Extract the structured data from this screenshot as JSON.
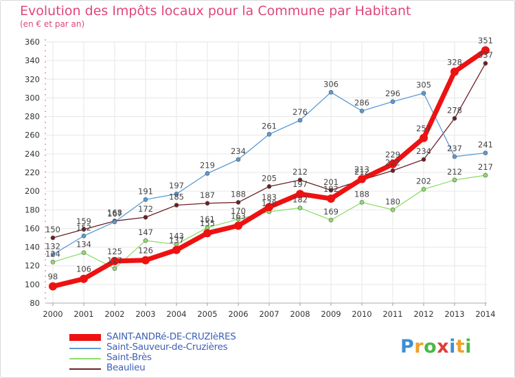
{
  "header": {
    "title": "Evolution des Impôts locaux pour la Commune par Habitant",
    "subtitle": "(en € et par an)"
  },
  "colors": {
    "title": "#e0457b",
    "axis_text": "#333333",
    "grid": "#e6e6e6",
    "legend_text": "#3c5fb4"
  },
  "chart_data": {
    "type": "line",
    "x": [
      "2000",
      "2001",
      "2002",
      "2003",
      "2004",
      "2005",
      "2006",
      "2007",
      "2008",
      "2009",
      "2010",
      "2011",
      "2012",
      "2013",
      "2014"
    ],
    "ylim": [
      80,
      360
    ],
    "yticks": [
      "80",
      "100",
      "120",
      "140",
      "160",
      "180",
      "200",
      "220",
      "240",
      "260",
      "280",
      "300",
      "320",
      "340",
      "360"
    ],
    "grid": true,
    "legend_position": "bottom-left",
    "series": [
      {
        "name": "Beaulieu",
        "color": "#6b1f24",
        "values": [
          150,
          159,
          168,
          172,
          185,
          187,
          188,
          205,
          212,
          201,
          212,
          222,
          234,
          278,
          337
        ]
      },
      {
        "name": "Saint-Brès",
        "color": "#8fdd6a",
        "values": [
          124,
          134,
          117,
          147,
          143,
          161,
          170,
          178,
          182,
          169,
          188,
          180,
          202,
          212,
          217
        ]
      },
      {
        "name": "Saint-Sauveur-de-Cruzières",
        "color": "#5b9bd5",
        "values": [
          132,
          152,
          167,
          191,
          197,
          219,
          234,
          261,
          276,
          306,
          286,
          296,
          305,
          237,
          241
        ]
      },
      {
        "name": "SAINT-ANDRé-DE-CRUZIèRES",
        "color": "#ee1111",
        "values": [
          98,
          106,
          125,
          126,
          137,
          155,
          163,
          183,
          197,
          192,
          213,
          229,
          257,
          328,
          351
        ]
      }
    ]
  },
  "legend": {
    "items": [
      {
        "label": "SAINT-ANDRé-DE-CRUZIèRES",
        "color": "#ee1111"
      },
      {
        "label": "Saint-Sauveur-de-Cruzières",
        "color": "#5b9bd5"
      },
      {
        "label": "Saint-Brès",
        "color": "#8fdd6a"
      },
      {
        "label": "Beaulieu",
        "color": "#6b1f24"
      }
    ]
  },
  "logo": {
    "letters": [
      {
        "ch": "P",
        "color": "#3a8fd6"
      },
      {
        "ch": "r",
        "color": "#f0a02a"
      },
      {
        "ch": "o",
        "color": "#4cb848"
      },
      {
        "ch": "x",
        "color": "#e23b3b"
      },
      {
        "ch": "i",
        "color": "#3a8fd6"
      },
      {
        "ch": "t",
        "color": "#f0a02a"
      },
      {
        "ch": "i",
        "color": "#4cb848"
      }
    ]
  }
}
